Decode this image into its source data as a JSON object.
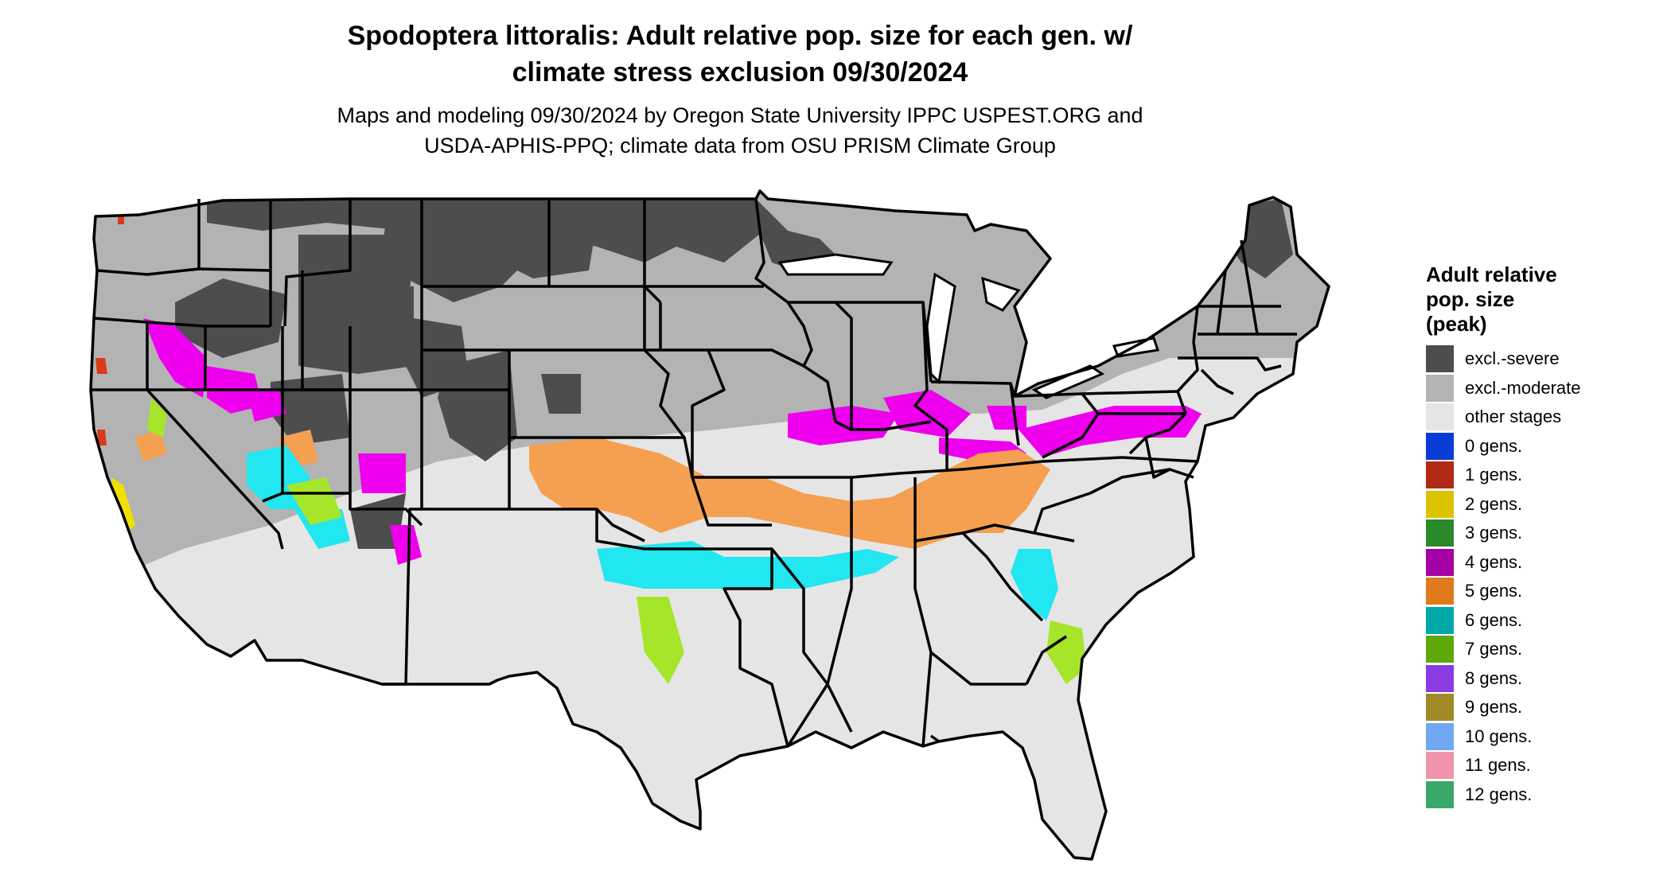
{
  "title": {
    "line1": "Spodoptera littoralis: Adult relative pop. size for each gen. w/",
    "line2": "climate stress exclusion 09/30/2024"
  },
  "subtitle": {
    "line1": "Maps and modeling 09/30/2024 by Oregon State University IPPC USPEST.ORG and",
    "line2": "USDA-APHIS-PPQ; climate data from OSU PRISM Climate Group"
  },
  "legend": {
    "title_lines": [
      "Adult relative",
      "pop. size",
      "(peak)"
    ],
    "items": [
      {
        "label": "excl.-severe",
        "color": "#4d4d4d"
      },
      {
        "label": "excl.-moderate",
        "color": "#b3b3b3"
      },
      {
        "label": "other stages",
        "color": "#e5e5e5"
      },
      {
        "label": "0 gens.",
        "color": "#0a3cd6"
      },
      {
        "label": "1 gens.",
        "color": "#b22a16"
      },
      {
        "label": "2 gens.",
        "color": "#dcc300"
      },
      {
        "label": "3 gens.",
        "color": "#2a8a2a"
      },
      {
        "label": "4 gens.",
        "color": "#a500a5"
      },
      {
        "label": "5 gens.",
        "color": "#e07a1a"
      },
      {
        "label": "6 gens.",
        "color": "#00a8a8"
      },
      {
        "label": "7 gens.",
        "color": "#5fa80a"
      },
      {
        "label": "8 gens.",
        "color": "#8a3ce0"
      },
      {
        "label": "9 gens.",
        "color": "#a08a28"
      },
      {
        "label": "10 gens.",
        "color": "#6fa8f0"
      },
      {
        "label": "11 gens.",
        "color": "#f094ac"
      },
      {
        "label": "12 gens.",
        "color": "#3aa86a"
      }
    ]
  },
  "map_colors": {
    "severe": "#4d4d4d",
    "moderate": "#b3b3b3",
    "other": "#e5e5e5",
    "gen4": "#ee00ee",
    "gen5": "#f5a050",
    "gen6": "#22e6f0",
    "gen7": "#a6e62a",
    "gen2": "#f0e000",
    "gen1": "#d83a1a",
    "border": "#000000"
  }
}
